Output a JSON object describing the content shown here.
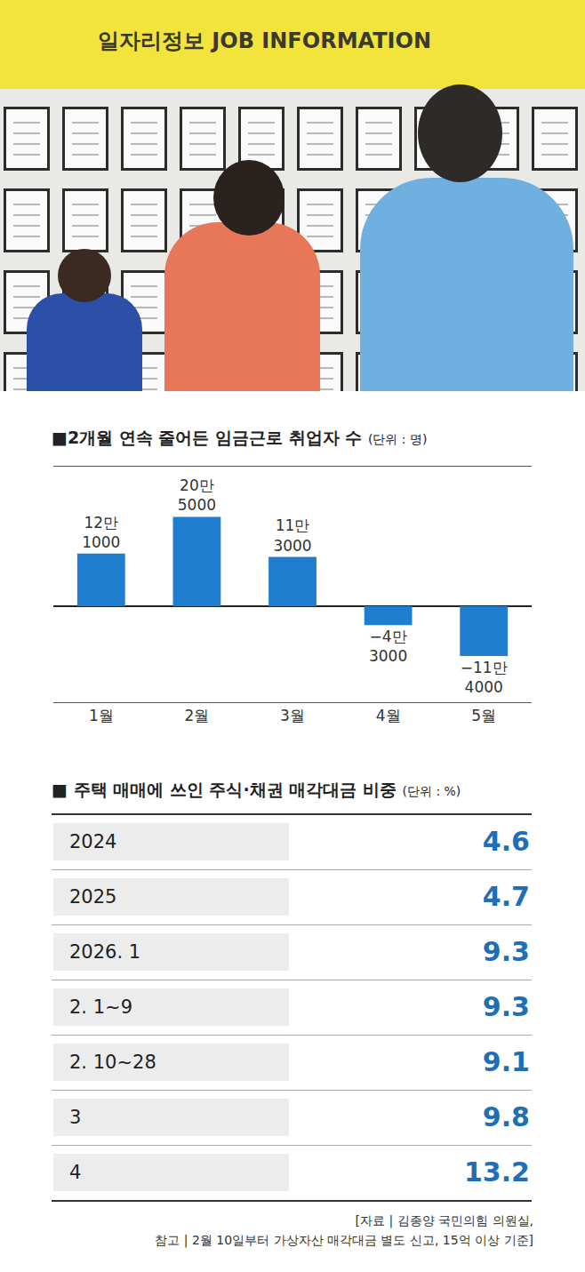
{
  "photo": {
    "sign": "일자리정보 JOB INFORMATION"
  },
  "chart_data": {
    "type": "bar",
    "title": "■2개월 연속 줄어든 임금근로 취업자 수",
    "unit": "(단위 : 명)",
    "categories": [
      "1월",
      "2월",
      "3월",
      "4월",
      "5월"
    ],
    "values": [
      121000,
      205000,
      113000,
      -43000,
      -114000
    ],
    "value_labels": [
      "12만 1000",
      "20만 5000",
      "11만 3000",
      "−4만 3000",
      "−11만 4000"
    ],
    "color": "#1f7ed0",
    "ylim": [
      -220000,
      320000
    ],
    "yticks": [],
    "grid": false,
    "data_labels": true,
    "tick_labels": "x"
  },
  "table": {
    "title": "■ 주택 매매에 쓰인 주식·채권 매각대금 비중",
    "unit": "(단위 : %)",
    "rows": [
      [
        "2024",
        "4.6"
      ],
      [
        "2025",
        "4.7"
      ],
      [
        "2026. 1",
        "9.3"
      ],
      [
        "2. 1~9",
        "9.3"
      ],
      [
        "2. 10~28",
        "9.1"
      ],
      [
        "3",
        "9.8"
      ],
      [
        "4",
        "13.2"
      ]
    ]
  },
  "source": [
    "[자료 | 김종양 국민의힘 의원실,",
    "참고 | 2월 10일부터 가상자산 매각대금 별도 신고, 15억 이상 기준]"
  ]
}
